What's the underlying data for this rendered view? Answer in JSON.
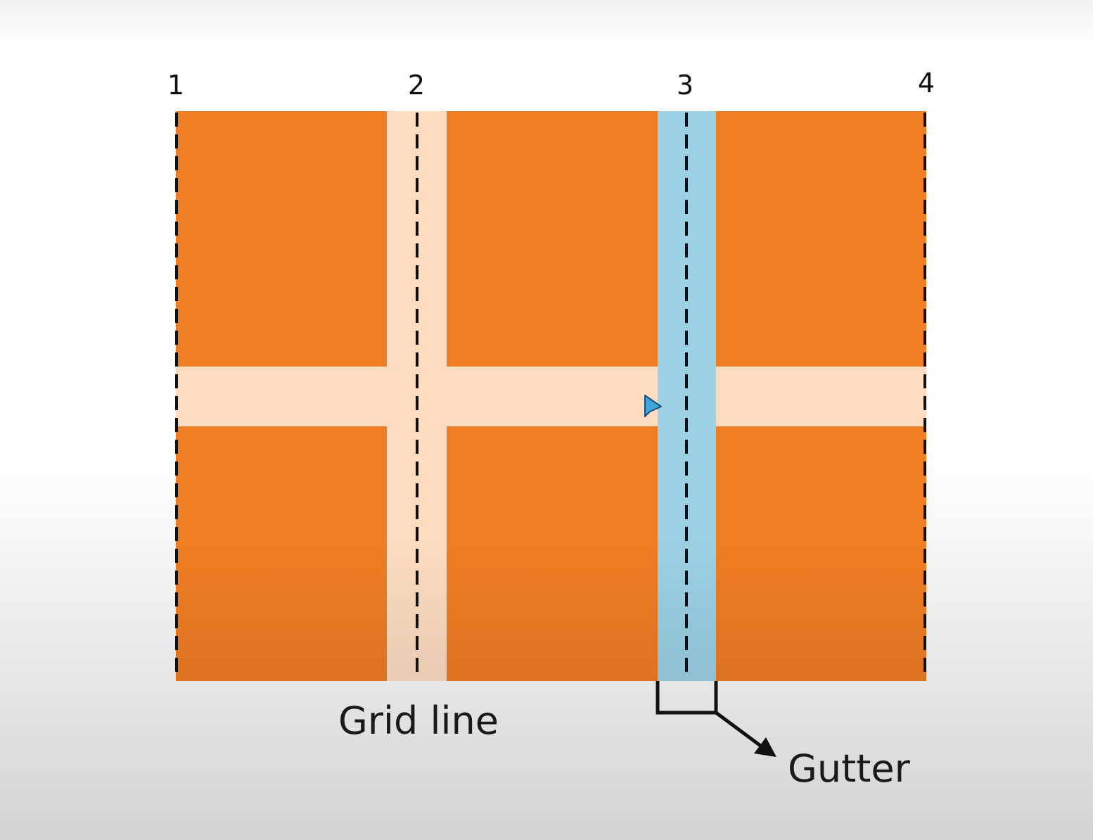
{
  "colors": {
    "cell": "#ef7d24",
    "gap": "#fddcc0",
    "gutter_highlight": "#9bd0e5",
    "grid_line": "#111111",
    "cursor": "#3ea6dc"
  },
  "grid_line_numbers": [
    "1",
    "2",
    "3",
    "4"
  ],
  "labels": {
    "grid_line": "Grid line",
    "gutter": "Gutter"
  },
  "icons": {
    "cursor": "mouse-pointer-icon",
    "arrow": "arrow-icon"
  }
}
